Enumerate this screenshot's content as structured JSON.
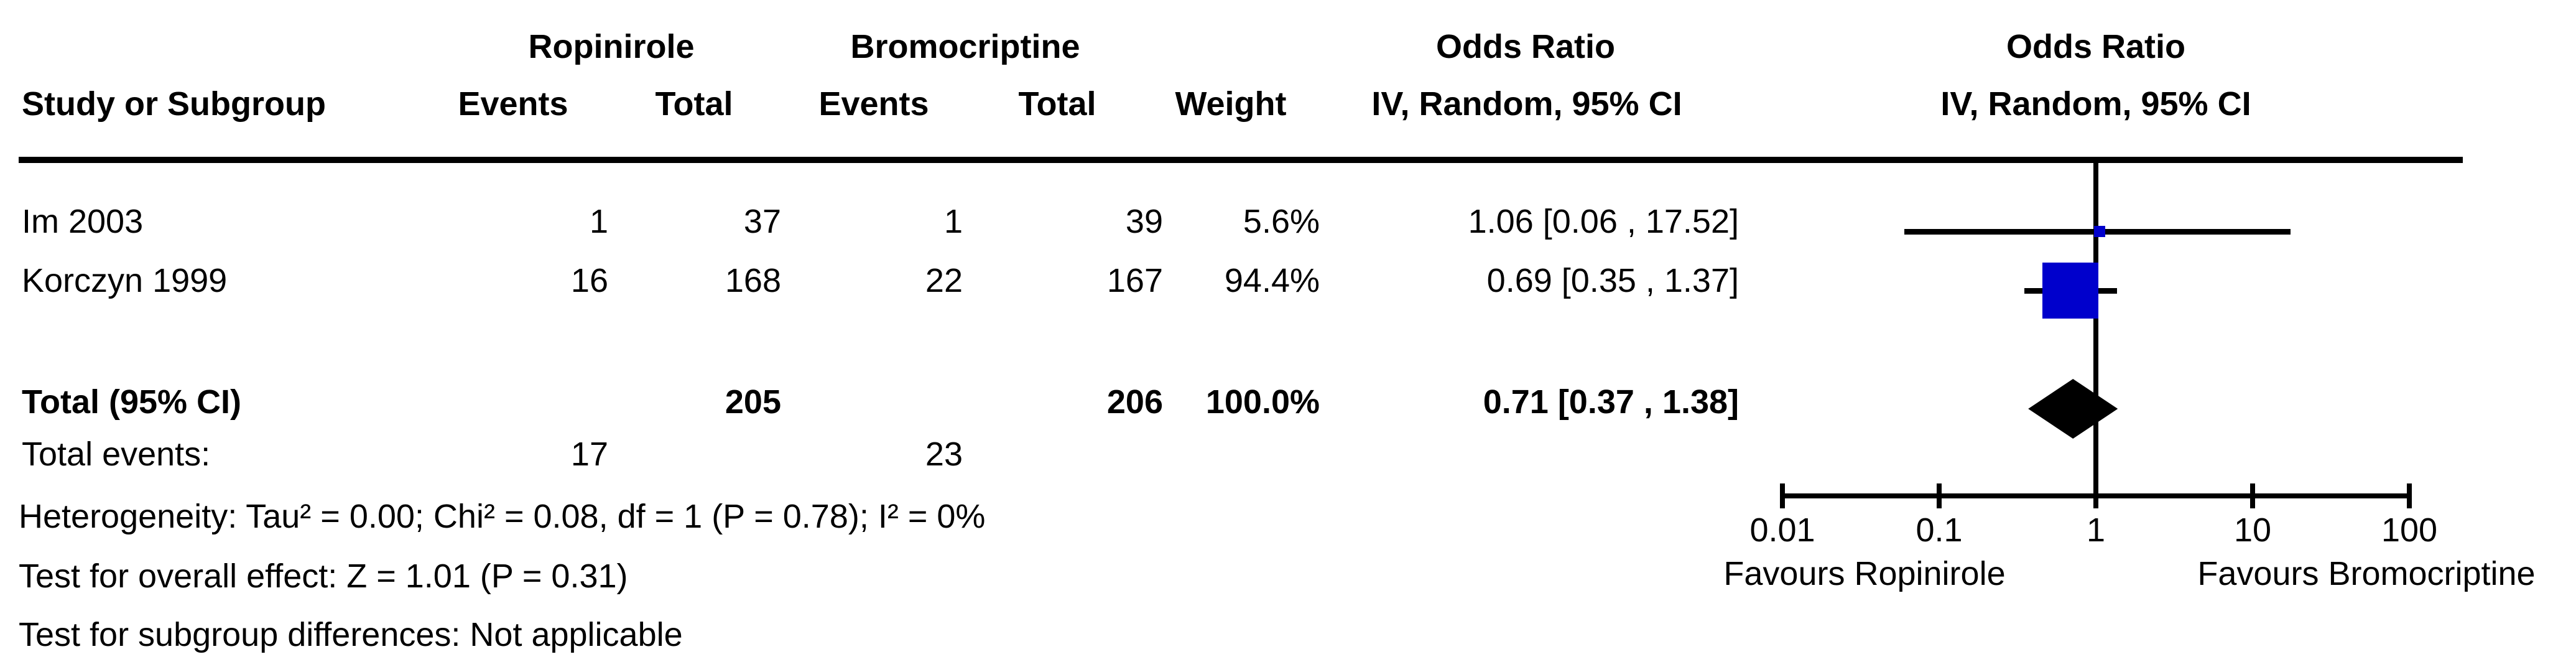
{
  "header": {
    "group1": "Ropinirole",
    "group2": "Bromocriptine",
    "or_col_title": "Odds Ratio",
    "or_col_sub": "IV, Random, 95% CI",
    "plot_col_title": "Odds Ratio",
    "plot_col_sub": "IV, Random, 95% CI",
    "study_col": "Study or Subgroup",
    "events_col_1": "Events",
    "total_col_1": "Total",
    "events_col_2": "Events",
    "total_col_2": "Total",
    "weight_col": "Weight"
  },
  "studies": [
    {
      "name": "Im 2003",
      "events1": "1",
      "total1": "37",
      "events2": "1",
      "total2": "39",
      "weight": "5.6%",
      "or_ci": "1.06 [0.06 , 17.52]"
    },
    {
      "name": "Korczyn 1999",
      "events1": "16",
      "total1": "168",
      "events2": "22",
      "total2": "167",
      "weight": "94.4%",
      "or_ci": "0.69 [0.35 , 1.37]"
    }
  ],
  "total_row": {
    "label": "Total (95% CI)",
    "total1": "205",
    "total2": "206",
    "weight": "100.0%",
    "or_ci": "0.71 [0.37 , 1.38]"
  },
  "total_events_row": {
    "label": "Total events:",
    "events1": "17",
    "events2": "23"
  },
  "footer": {
    "heterogeneity": "Heterogeneity: Tau² = 0.00; Chi² = 0.08, df = 1 (P = 0.78); I² = 0%",
    "overall_effect": "Test for overall effect: Z = 1.01 (P = 0.31)",
    "subgroup": "Test for subgroup differences: Not applicable"
  },
  "axis": {
    "tick_labels": [
      "0.01",
      "0.1",
      "1",
      "10",
      "100"
    ],
    "favours_left": "Favours Ropinirole",
    "favours_right": "Favours Bromocriptine"
  },
  "colors": {
    "marker_blue": "#0000cc",
    "ink": "#000000"
  },
  "chart_data": {
    "type": "forest",
    "effect_measure": "Odds Ratio, IV, Random, 95% CI",
    "x_scale": "log10",
    "x_ticks": [
      0.01,
      0.1,
      1,
      10,
      100
    ],
    "x_range": [
      0.01,
      100
    ],
    "null_line": 1,
    "studies": [
      {
        "label": "Im 2003",
        "events_treat": 1,
        "total_treat": 37,
        "events_ctrl": 1,
        "total_ctrl": 39,
        "weight_pct": 5.6,
        "or": 1.06,
        "ci_low": 0.06,
        "ci_high": 17.52
      },
      {
        "label": "Korczyn 1999",
        "events_treat": 16,
        "total_treat": 168,
        "events_ctrl": 22,
        "total_ctrl": 167,
        "weight_pct": 94.4,
        "or": 0.69,
        "ci_low": 0.35,
        "ci_high": 1.37
      }
    ],
    "total": {
      "label": "Total (95% CI)",
      "total_treat": 205,
      "total_ctrl": 206,
      "weight_pct": 100.0,
      "or": 0.71,
      "ci_low": 0.37,
      "ci_high": 1.38
    },
    "heterogeneity": {
      "tau2": 0.0,
      "chi2": 0.08,
      "df": 1,
      "p": 0.78,
      "i2_pct": 0
    },
    "overall_effect": {
      "z": 1.01,
      "p": 0.31
    },
    "favours_left": "Favours Ropinirole",
    "favours_right": "Favours Bromocriptine"
  }
}
